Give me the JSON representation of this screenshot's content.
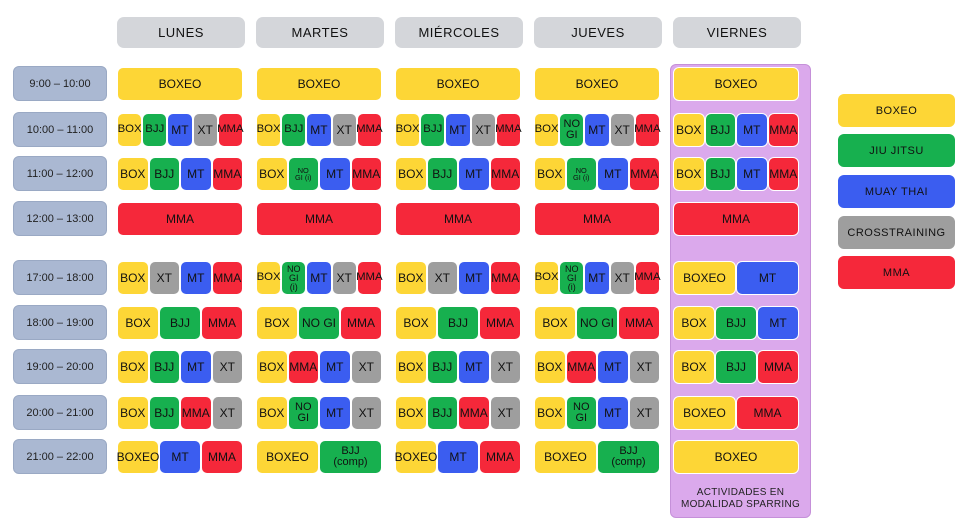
{
  "colors": {
    "BOXEO": "#fdd636",
    "BJJ": "#17b04f",
    "MT": "#3b5df0",
    "XT": "#9e9e9e",
    "MMA": "#f5283a"
  },
  "days": [
    "LUNES",
    "MARTES",
    "MIÉRCOLES",
    "JUEVES",
    "VIERNES"
  ],
  "times": [
    "9:00 – 10:00",
    "10:00 – 11:00",
    "11:00 – 12:00",
    "12:00 – 13:00",
    "17:00 – 18:00",
    "18:00 – 19:00",
    "19:00 – 20:00",
    "20:00 – 21:00",
    "21:00 – 22:00"
  ],
  "schedule": [
    [
      [
        {
          "t": "BOXEO",
          "c": "BOXEO"
        }
      ],
      [
        {
          "t": "BOX",
          "c": "BOXEO"
        },
        {
          "t": "BJJ",
          "c": "BJJ"
        },
        {
          "t": "MT",
          "c": "MT"
        },
        {
          "t": "XT",
          "c": "XT"
        },
        {
          "t": "MMA",
          "c": "MMA"
        }
      ],
      [
        {
          "t": "BOX",
          "c": "BOXEO"
        },
        {
          "t": "BJJ",
          "c": "BJJ"
        },
        {
          "t": "MT",
          "c": "MT"
        },
        {
          "t": "MMA",
          "c": "MMA"
        }
      ],
      [
        {
          "t": "MMA",
          "c": "MMA"
        }
      ],
      [
        {
          "t": "BOX",
          "c": "BOXEO"
        },
        {
          "t": "XT",
          "c": "XT"
        },
        {
          "t": "MT",
          "c": "MT"
        },
        {
          "t": "MMA",
          "c": "MMA"
        }
      ],
      [
        {
          "t": "BOX",
          "c": "BOXEO"
        },
        {
          "t": "BJJ",
          "c": "BJJ"
        },
        {
          "t": "MMA",
          "c": "MMA"
        }
      ],
      [
        {
          "t": "BOX",
          "c": "BOXEO"
        },
        {
          "t": "BJJ",
          "c": "BJJ"
        },
        {
          "t": "MT",
          "c": "MT"
        },
        {
          "t": "XT",
          "c": "XT"
        }
      ],
      [
        {
          "t": "BOX",
          "c": "BOXEO"
        },
        {
          "t": "BJJ",
          "c": "BJJ"
        },
        {
          "t": "MMA",
          "c": "MMA"
        },
        {
          "t": "XT",
          "c": "XT"
        }
      ],
      [
        {
          "t": "BOXEO",
          "c": "BOXEO"
        },
        {
          "t": "MT",
          "c": "MT"
        },
        {
          "t": "MMA",
          "c": "MMA"
        }
      ]
    ],
    [
      [
        {
          "t": "BOXEO",
          "c": "BOXEO"
        }
      ],
      [
        {
          "t": "BOX",
          "c": "BOXEO"
        },
        {
          "t": "BJJ",
          "c": "BJJ"
        },
        {
          "t": "MT",
          "c": "MT"
        },
        {
          "t": "XT",
          "c": "XT"
        },
        {
          "t": "MMA",
          "c": "MMA"
        }
      ],
      [
        {
          "t": "BOX",
          "c": "BOXEO"
        },
        {
          "t": "NO\nGI (i)",
          "c": "BJJ"
        },
        {
          "t": "MT",
          "c": "MT"
        },
        {
          "t": "MMA",
          "c": "MMA"
        }
      ],
      [
        {
          "t": "MMA",
          "c": "MMA"
        }
      ],
      [
        {
          "t": "BOX",
          "c": "BOXEO"
        },
        {
          "t": "NO\nGI\n(i)",
          "c": "BJJ"
        },
        {
          "t": "MT",
          "c": "MT"
        },
        {
          "t": "XT",
          "c": "XT"
        },
        {
          "t": "MMA",
          "c": "MMA"
        }
      ],
      [
        {
          "t": "BOX",
          "c": "BOXEO"
        },
        {
          "t": "NO GI",
          "c": "BJJ"
        },
        {
          "t": "MMA",
          "c": "MMA"
        }
      ],
      [
        {
          "t": "BOX",
          "c": "BOXEO"
        },
        {
          "t": "MMA",
          "c": "MMA"
        },
        {
          "t": "MT",
          "c": "MT"
        },
        {
          "t": "XT",
          "c": "XT"
        }
      ],
      [
        {
          "t": "BOX",
          "c": "BOXEO"
        },
        {
          "t": "NO\nGI",
          "c": "BJJ"
        },
        {
          "t": "MT",
          "c": "MT"
        },
        {
          "t": "XT",
          "c": "XT"
        }
      ],
      [
        {
          "t": "BOXEO",
          "c": "BOXEO"
        },
        {
          "t": "BJJ\n(comp)",
          "c": "BJJ"
        }
      ]
    ],
    [
      [
        {
          "t": "BOXEO",
          "c": "BOXEO"
        }
      ],
      [
        {
          "t": "BOX",
          "c": "BOXEO"
        },
        {
          "t": "BJJ",
          "c": "BJJ"
        },
        {
          "t": "MT",
          "c": "MT"
        },
        {
          "t": "XT",
          "c": "XT"
        },
        {
          "t": "MMA",
          "c": "MMA"
        }
      ],
      [
        {
          "t": "BOX",
          "c": "BOXEO"
        },
        {
          "t": "BJJ",
          "c": "BJJ"
        },
        {
          "t": "MT",
          "c": "MT"
        },
        {
          "t": "MMA",
          "c": "MMA"
        }
      ],
      [
        {
          "t": "MMA",
          "c": "MMA"
        }
      ],
      [
        {
          "t": "BOX",
          "c": "BOXEO"
        },
        {
          "t": "XT",
          "c": "XT"
        },
        {
          "t": "MT",
          "c": "MT"
        },
        {
          "t": "MMA",
          "c": "MMA"
        }
      ],
      [
        {
          "t": "BOX",
          "c": "BOXEO"
        },
        {
          "t": "BJJ",
          "c": "BJJ"
        },
        {
          "t": "MMA",
          "c": "MMA"
        }
      ],
      [
        {
          "t": "BOX",
          "c": "BOXEO"
        },
        {
          "t": "BJJ",
          "c": "BJJ"
        },
        {
          "t": "MT",
          "c": "MT"
        },
        {
          "t": "XT",
          "c": "XT"
        }
      ],
      [
        {
          "t": "BOX",
          "c": "BOXEO"
        },
        {
          "t": "BJJ",
          "c": "BJJ"
        },
        {
          "t": "MMA",
          "c": "MMA"
        },
        {
          "t": "XT",
          "c": "XT"
        }
      ],
      [
        {
          "t": "BOXEO",
          "c": "BOXEO"
        },
        {
          "t": "MT",
          "c": "MT"
        },
        {
          "t": "MMA",
          "c": "MMA"
        }
      ]
    ],
    [
      [
        {
          "t": "BOXEO",
          "c": "BOXEO"
        }
      ],
      [
        {
          "t": "BOX",
          "c": "BOXEO"
        },
        {
          "t": "NO\nGI",
          "c": "BJJ"
        },
        {
          "t": "MT",
          "c": "MT"
        },
        {
          "t": "XT",
          "c": "XT"
        },
        {
          "t": "MMA",
          "c": "MMA"
        }
      ],
      [
        {
          "t": "BOX",
          "c": "BOXEO"
        },
        {
          "t": "NO\nGI (i)",
          "c": "BJJ"
        },
        {
          "t": "MT",
          "c": "MT"
        },
        {
          "t": "MMA",
          "c": "MMA"
        }
      ],
      [
        {
          "t": "MMA",
          "c": "MMA"
        }
      ],
      [
        {
          "t": "BOX",
          "c": "BOXEO"
        },
        {
          "t": "NO\nGI\n(i)",
          "c": "BJJ"
        },
        {
          "t": "MT",
          "c": "MT"
        },
        {
          "t": "XT",
          "c": "XT"
        },
        {
          "t": "MMA",
          "c": "MMA"
        }
      ],
      [
        {
          "t": "BOX",
          "c": "BOXEO"
        },
        {
          "t": "NO GI",
          "c": "BJJ"
        },
        {
          "t": "MMA",
          "c": "MMA"
        }
      ],
      [
        {
          "t": "BOX",
          "c": "BOXEO"
        },
        {
          "t": "MMA",
          "c": "MMA"
        },
        {
          "t": "MT",
          "c": "MT"
        },
        {
          "t": "XT",
          "c": "XT"
        }
      ],
      [
        {
          "t": "BOX",
          "c": "BOXEO"
        },
        {
          "t": "NO\nGI",
          "c": "BJJ"
        },
        {
          "t": "MT",
          "c": "MT"
        },
        {
          "t": "XT",
          "c": "XT"
        }
      ],
      [
        {
          "t": "BOXEO",
          "c": "BOXEO"
        },
        {
          "t": "BJJ\n(comp)",
          "c": "BJJ"
        }
      ]
    ],
    [
      [
        {
          "t": "BOXEO",
          "c": "BOXEO"
        }
      ],
      [
        {
          "t": "BOX",
          "c": "BOXEO"
        },
        {
          "t": "BJJ",
          "c": "BJJ"
        },
        {
          "t": "MT",
          "c": "MT"
        },
        {
          "t": "MMA",
          "c": "MMA"
        }
      ],
      [
        {
          "t": "BOX",
          "c": "BOXEO"
        },
        {
          "t": "BJJ",
          "c": "BJJ"
        },
        {
          "t": "MT",
          "c": "MT"
        },
        {
          "t": "MMA",
          "c": "MMA"
        }
      ],
      [
        {
          "t": "MMA",
          "c": "MMA"
        }
      ],
      [
        {
          "t": "BOXEO",
          "c": "BOXEO"
        },
        {
          "t": "MT",
          "c": "MT"
        }
      ],
      [
        {
          "t": "BOX",
          "c": "BOXEO"
        },
        {
          "t": "BJJ",
          "c": "BJJ"
        },
        {
          "t": "MT",
          "c": "MT"
        }
      ],
      [
        {
          "t": "BOX",
          "c": "BOXEO"
        },
        {
          "t": "BJJ",
          "c": "BJJ"
        },
        {
          "t": "MMA",
          "c": "MMA"
        }
      ],
      [
        {
          "t": "BOXEO",
          "c": "BOXEO"
        },
        {
          "t": "MMA",
          "c": "MMA"
        }
      ],
      [
        {
          "t": "BOXEO",
          "c": "BOXEO"
        }
      ]
    ]
  ],
  "sparring_note": "ACTIVIDADES EN MODALIDAD SPARRING",
  "legend": [
    {
      "label": "BOXEO",
      "c": "BOXEO"
    },
    {
      "label": "JIU JITSU",
      "c": "BJJ"
    },
    {
      "label": "MUAY THAI",
      "c": "MT"
    },
    {
      "label": "CROSSTRAINING",
      "c": "XT"
    },
    {
      "label": "MMA",
      "c": "MMA"
    }
  ]
}
